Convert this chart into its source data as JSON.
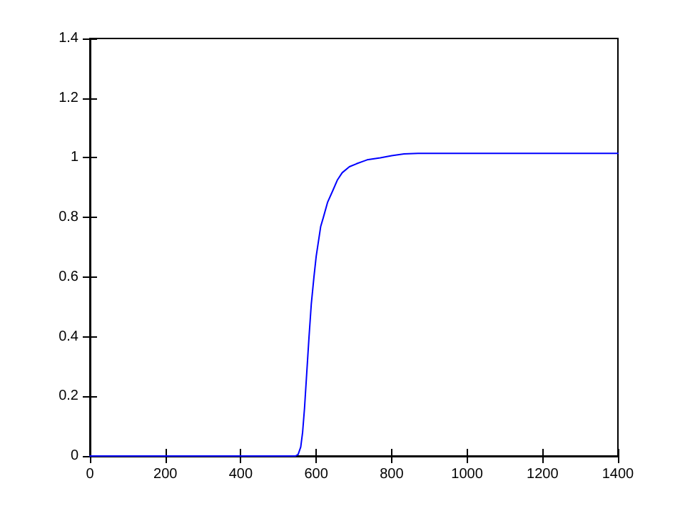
{
  "chart_data": {
    "type": "line",
    "x": [
      0,
      200,
      400,
      545,
      552,
      559,
      564,
      569,
      575,
      581,
      587,
      594,
      600,
      606,
      612,
      619,
      630,
      644,
      656,
      669,
      688,
      707,
      735,
      770,
      800,
      833,
      870,
      895,
      1000,
      1200,
      1400
    ],
    "series": [
      {
        "color": "#0000ff",
        "values": [
          0,
          0,
          0,
          0,
          0.005,
          0.03,
          0.08,
          0.16,
          0.28,
          0.4,
          0.51,
          0.6,
          0.67,
          0.72,
          0.77,
          0.8,
          0.85,
          0.89,
          0.925,
          0.95,
          0.97,
          0.98,
          0.993,
          1.0,
          1.007,
          1.013,
          1.015,
          1.015,
          1.015,
          1.015,
          1.015
        ]
      }
    ],
    "xlim": [
      0,
      1400
    ],
    "xticks": [
      0,
      200,
      400,
      600,
      800,
      1000,
      1200,
      1400
    ],
    "ylim": [
      0,
      1.4
    ],
    "yticks": [
      0,
      0.2,
      0.4,
      0.6,
      0.8,
      1,
      1.2,
      1.4
    ],
    "grid": false,
    "marker": "none",
    "line_style": "solid"
  }
}
